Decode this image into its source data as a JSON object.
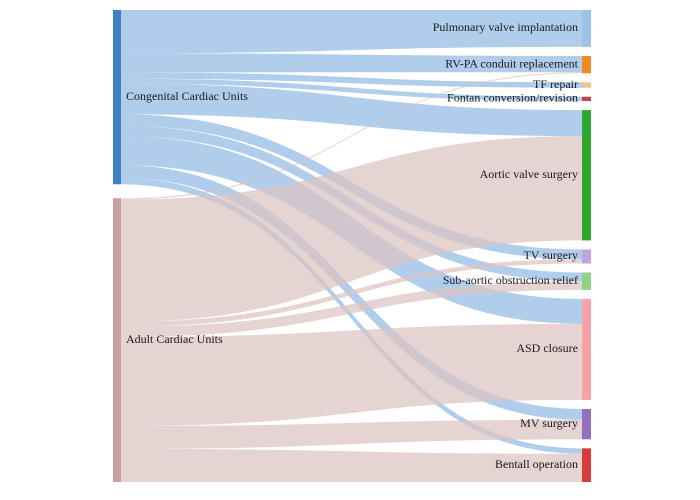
{
  "diagram": {
    "type": "sankey",
    "colors": {
      "congenital_flow": "#9fc3e6",
      "adult_flow": "#dcc3c1"
    },
    "sources": [
      {
        "id": "congenital",
        "label": "Congenital Cardiac Units",
        "color": "#3d7fc4"
      },
      {
        "id": "adult",
        "label": "Adult Cardiac Units",
        "color": "#c9a09c"
      }
    ],
    "targets": [
      {
        "id": "pulmonary",
        "label": "Pulmonary valve implantation",
        "color": "#9fc3e6"
      },
      {
        "id": "rvpa",
        "label": "RV-PA conduit replacement",
        "color": "#f08a24"
      },
      {
        "id": "tf",
        "label": "TF repair",
        "color": "#f4c189"
      },
      {
        "id": "fontan",
        "label": "Fontan conversion/revision",
        "color": "#c2444e"
      },
      {
        "id": "aortic",
        "label": "Aortic valve surgery",
        "color": "#2ea82e"
      },
      {
        "id": "tv",
        "label": "TV surgery",
        "color": "#bfa6dd"
      },
      {
        "id": "subaortic",
        "label": "Sub-aortic obstruction relief",
        "color": "#8fd28a"
      },
      {
        "id": "asd",
        "label": "ASD closure",
        "color": "#f5a3a6"
      },
      {
        "id": "mv",
        "label": "MV surgery",
        "color": "#9270c0"
      },
      {
        "id": "bentall",
        "label": "Bentall operation",
        "color": "#d93a3a"
      }
    ],
    "links": [
      {
        "source": "congenital",
        "target": "pulmonary",
        "value": 34
      },
      {
        "source": "congenital",
        "target": "rvpa",
        "value": 15
      },
      {
        "source": "congenital",
        "target": "tf",
        "value": 5
      },
      {
        "source": "congenital",
        "target": "fontan",
        "value": 4
      },
      {
        "source": "congenital",
        "target": "aortic",
        "value": 24
      },
      {
        "source": "congenital",
        "target": "tv",
        "value": 9
      },
      {
        "source": "congenital",
        "target": "subaortic",
        "value": 8
      },
      {
        "source": "congenital",
        "target": "asd",
        "value": 23
      },
      {
        "source": "congenital",
        "target": "mv",
        "value": 10
      },
      {
        "source": "congenital",
        "target": "bentall",
        "value": 5
      },
      {
        "source": "adult",
        "target": "rvpa",
        "value": 1
      },
      {
        "source": "adult",
        "target": "aortic",
        "value": 96
      },
      {
        "source": "adult",
        "target": "tv",
        "value": 4
      },
      {
        "source": "adult",
        "target": "subaortic",
        "value": 8
      },
      {
        "source": "adult",
        "target": "asd",
        "value": 70
      },
      {
        "source": "adult",
        "target": "mv",
        "value": 18
      },
      {
        "source": "adult",
        "target": "bentall",
        "value": 26
      }
    ]
  }
}
